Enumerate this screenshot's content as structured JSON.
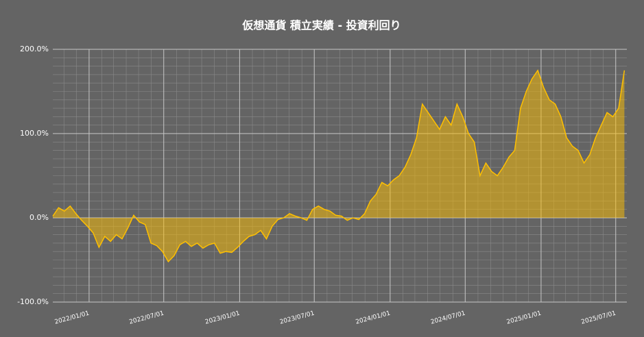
{
  "chart_data": {
    "type": "area",
    "title": "仮想通貨 積立実績 - 投資利回り",
    "x": [
      "2021/10/05",
      "2021/10/19",
      "2021/11/02",
      "2021/11/16",
      "2021/11/30",
      "2021/12/14",
      "2021/12/28",
      "2022/01/11",
      "2022/01/25",
      "2022/02/08",
      "2022/02/22",
      "2022/03/08",
      "2022/03/22",
      "2022/04/05",
      "2022/04/19",
      "2022/05/03",
      "2022/05/17",
      "2022/05/31",
      "2022/06/14",
      "2022/06/28",
      "2022/07/12",
      "2022/07/26",
      "2022/08/09",
      "2022/08/23",
      "2022/09/06",
      "2022/09/20",
      "2022/10/04",
      "2022/10/18",
      "2022/11/01",
      "2022/11/15",
      "2022/11/29",
      "2022/12/13",
      "2022/12/27",
      "2023/01/10",
      "2023/01/24",
      "2023/02/07",
      "2023/02/21",
      "2023/03/07",
      "2023/03/21",
      "2023/04/04",
      "2023/04/18",
      "2023/05/02",
      "2023/05/16",
      "2023/05/30",
      "2023/06/13",
      "2023/06/27",
      "2023/07/11",
      "2023/07/25",
      "2023/08/08",
      "2023/08/22",
      "2023/09/05",
      "2023/09/19",
      "2023/10/03",
      "2023/10/17",
      "2023/10/31",
      "2023/11/14",
      "2023/11/28",
      "2023/12/12",
      "2023/12/26",
      "2024/01/09",
      "2024/01/23",
      "2024/02/06",
      "2024/02/20",
      "2024/03/05",
      "2024/03/19",
      "2024/04/02",
      "2024/04/16",
      "2024/04/30",
      "2024/05/14",
      "2024/05/28",
      "2024/06/11",
      "2024/06/25",
      "2024/07/09",
      "2024/07/23",
      "2024/08/06",
      "2024/08/20",
      "2024/09/03",
      "2024/09/17",
      "2024/10/01",
      "2024/10/15",
      "2024/10/29",
      "2024/11/12",
      "2024/11/26",
      "2024/12/10",
      "2024/12/24",
      "2025/01/07",
      "2025/01/21",
      "2025/02/04",
      "2025/02/18",
      "2025/03/04",
      "2025/03/18",
      "2025/04/01",
      "2025/04/15",
      "2025/04/29",
      "2025/05/13",
      "2025/05/27",
      "2025/06/10",
      "2025/06/24",
      "2025/07/08",
      "2025/07/22"
    ],
    "values": [
      2,
      12,
      8,
      14,
      5,
      -3,
      -10,
      -18,
      -35,
      -22,
      -28,
      -20,
      -25,
      -12,
      3,
      -5,
      -8,
      -30,
      -33,
      -40,
      -52,
      -45,
      -32,
      -28,
      -34,
      -30,
      -36,
      -32,
      -30,
      -42,
      -40,
      -41,
      -35,
      -28,
      -22,
      -20,
      -15,
      -25,
      -10,
      -2,
      0,
      5,
      2,
      0,
      -3,
      10,
      14,
      10,
      8,
      3,
      2,
      -3,
      0,
      -2,
      5,
      20,
      28,
      42,
      38,
      45,
      50,
      60,
      75,
      95,
      135,
      125,
      115,
      105,
      120,
      110,
      135,
      120,
      100,
      90,
      50,
      65,
      55,
      50,
      60,
      72,
      80,
      130,
      150,
      165,
      175,
      155,
      140,
      135,
      120,
      95,
      85,
      80,
      65,
      75,
      95,
      110,
      125,
      120,
      130,
      175
    ],
    "color": "#ffc000",
    "fill_opacity": 0.5,
    "xlim": [
      "2021/10/05",
      "2025/07/28"
    ],
    "xticks": [
      "2022/01/01",
      "2022/07/01",
      "2023/01/01",
      "2023/07/01",
      "2024/01/01",
      "2024/07/01",
      "2025/01/01",
      "2025/07/01"
    ],
    "minor_xticks": [
      "2021/11/01",
      "2021/12/01",
      "2022/02/01",
      "2022/03/01",
      "2022/04/01",
      "2022/05/01",
      "2022/06/01",
      "2022/08/01",
      "2022/09/01",
      "2022/10/01",
      "2022/11/01",
      "2022/12/01",
      "2023/02/01",
      "2023/03/01",
      "2023/04/01",
      "2023/05/01",
      "2023/06/01",
      "2023/08/01",
      "2023/09/01",
      "2023/10/01",
      "2023/11/01",
      "2023/12/01",
      "2024/02/01",
      "2024/03/01",
      "2024/04/01",
      "2024/05/01",
      "2024/06/01",
      "2024/08/01",
      "2024/09/01",
      "2024/10/01",
      "2024/11/01",
      "2024/12/01",
      "2025/02/01",
      "2025/03/01",
      "2025/04/01",
      "2025/05/01",
      "2025/06/01"
    ],
    "ylim": [
      -100,
      200
    ],
    "yticks": [
      {
        "value": -100,
        "label": "-100.0%"
      },
      {
        "value": 0,
        "label": "0.0%"
      },
      {
        "value": 100,
        "label": "100.0%"
      },
      {
        "value": 200,
        "label": "200.0%"
      }
    ],
    "minor_yticks": [
      -90,
      -80,
      -70,
      -60,
      -50,
      -40,
      -30,
      -20,
      -10,
      10,
      20,
      30,
      40,
      50,
      60,
      70,
      80,
      90,
      110,
      120,
      130,
      140,
      150,
      160,
      170,
      180,
      190
    ],
    "grid": true
  }
}
